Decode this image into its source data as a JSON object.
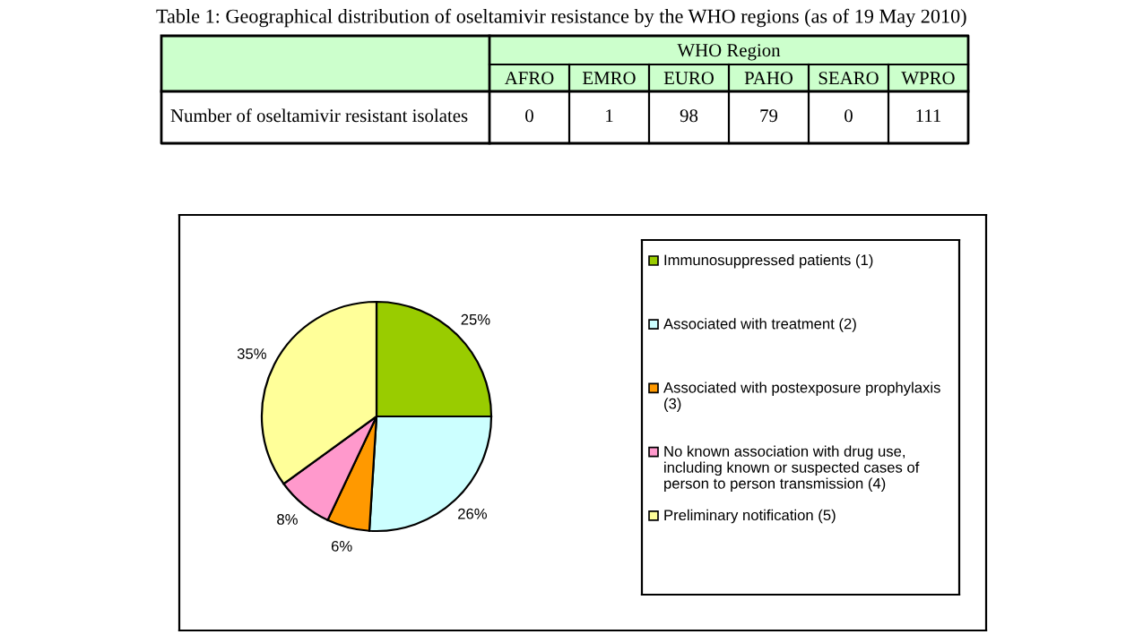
{
  "chart_data": [
    {
      "type": "other",
      "title": "Table 1: Geographical distribution of oseltamivir resistance by the WHO regions (as of 19 May 2010)",
      "xlabel": "WHO Region",
      "ylabel": "Number of oseltamivir resistant isolates",
      "categories": [
        "AFRO",
        "EMRO",
        "EURO",
        "PAHO",
        "SEARO",
        "WPRO"
      ],
      "values": [
        0,
        1,
        98,
        79,
        0,
        111
      ],
      "color": "#ccffcc",
      "data_labels": true
    },
    {
      "type": "pie",
      "categories": [
        "Immunosuppressed patients (1)",
        "Associated with treatment (2)",
        "Associated with postexposure prophylaxis (3)",
        "No known association with drug use, including known or suspected cases of person to person transmission (4)",
        "Preliminary notification (5)"
      ],
      "values": [
        25,
        26,
        6,
        8,
        35
      ],
      "value_labels": [
        "25%",
        "26%",
        "6%",
        "8%",
        "35%"
      ],
      "colors": [
        "#99cc00",
        "#ccffff",
        "#ff9900",
        "#ff99cc",
        "#ffff99"
      ],
      "legend": "right"
    }
  ]
}
